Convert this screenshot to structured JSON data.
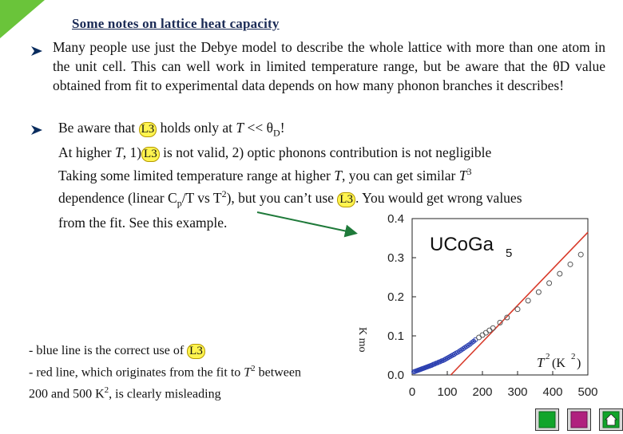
{
  "title": "Some notes on lattice heat capacity",
  "p1": "Many people use just the Debye model to describe the whole lattice with more than one atom in the unit cell. This can well work in limited temperature range, but be aware that the θD value obtained from fit to experimental data depends on how many phonon branches it describes!",
  "p2": {
    "a": "Be aware that",
    "ref": "L3",
    "b": "holds only at",
    "T": "T",
    "lt": "<< θ",
    "D": "D",
    "excl": "!",
    "line2a": "At higher",
    "line2b": ", 1)",
    "line2c": "is not valid, 2) optic phonons contribution is not negligible",
    "line3a": "Taking some limited temperature range at higher",
    "line3b": ", you can get similar",
    "sup3": "3",
    "line4a": "dependence (linear C",
    "sub_p": "p",
    "line4b": "/T vs T",
    "sup2": "2",
    "line4c": "), but you can’t use",
    "line4d": ". You would get wrong values",
    "line5": "from the fit. See this example."
  },
  "note": {
    "l1": "- blue line is the correct use of",
    "ref": "L3",
    "l2": "- red line, which originates from the fit to",
    "l2T": "T",
    "l2sup": "2",
    "l2b": "between",
    "l3": "200 and 500 K",
    "l3sup": "2",
    "l3b": ", is clearly misleading"
  },
  "chart_data": {
    "type": "scatter",
    "title": "UCoGa",
    "title_sub": "5",
    "xlabel": "T",
    "xlabel_sup": "2",
    "xlabel_unit": "(K",
    "xlabel_unit_sup": "2",
    "xlabel_close": ")",
    "ylabel_fragments": "K mo",
    "xlim": [
      0,
      500
    ],
    "ylim": [
      0,
      0.4
    ],
    "xticks": [
      "0",
      "100",
      "200",
      "300",
      "400",
      "500"
    ],
    "yticks": [
      "0.0",
      "0.1",
      "0.2",
      "0.3",
      "0.4"
    ],
    "yticks_values": [
      0,
      0.1,
      0.2,
      0.3,
      0.4
    ],
    "series": [
      {
        "color": "#2b3fb0",
        "x": [
          5,
          8,
          11,
          14,
          17,
          20,
          23,
          26,
          29,
          32,
          35,
          38,
          41,
          44,
          47,
          50,
          53,
          56,
          60,
          64,
          68,
          72,
          76,
          80,
          84,
          88,
          92,
          96,
          100,
          104,
          108,
          112,
          116,
          120,
          125,
          130,
          135,
          140,
          145,
          150,
          155,
          160,
          165,
          170,
          175,
          180
        ],
        "y": [
          0.008,
          0.009,
          0.01,
          0.011,
          0.012,
          0.013,
          0.014,
          0.015,
          0.016,
          0.017,
          0.018,
          0.019,
          0.02,
          0.021,
          0.022,
          0.023,
          0.024,
          0.025,
          0.027,
          0.028,
          0.03,
          0.031,
          0.033,
          0.034,
          0.036,
          0.037,
          0.039,
          0.041,
          0.043,
          0.045,
          0.047,
          0.049,
          0.051,
          0.053,
          0.056,
          0.058,
          0.061,
          0.064,
          0.067,
          0.07,
          0.073,
          0.076,
          0.079,
          0.083,
          0.086,
          0.09
        ]
      },
      {
        "color": "#555555",
        "x": [
          190,
          200,
          210,
          220,
          230,
          250,
          270,
          300,
          330,
          360,
          390,
          420,
          450,
          480
        ],
        "y": [
          0.096,
          0.102,
          0.108,
          0.114,
          0.12,
          0.134,
          0.147,
          0.168,
          0.19,
          0.212,
          0.235,
          0.259,
          0.283,
          0.308
        ]
      }
    ],
    "fit_line": {
      "color": "#d83a2a",
      "x": [
        110,
        500
      ],
      "y": [
        0.0,
        0.365
      ]
    },
    "colors": {
      "blue": "#2b3fb0",
      "red": "#d83a2a",
      "points": "#555555"
    }
  },
  "nav": [
    "prev-button",
    "next-button",
    "home-button"
  ],
  "colors": {
    "title": "#1a2a55",
    "highlight": "#fff44f",
    "corner": "#6ac43a",
    "arrow": "#1f7a3a",
    "nav_green": "#11a52b",
    "nav_magenta": "#b0217e"
  }
}
